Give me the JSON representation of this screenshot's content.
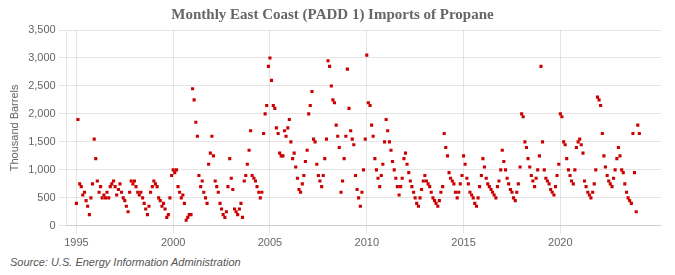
{
  "chart_data": {
    "type": "scatter",
    "title": "Monthly East Coast (PADD 1) Imports of Propane",
    "ylabel": "Thousand Barrels",
    "annotation": "Source: U.S. Energy Information Administration",
    "color": "#cc0000",
    "marker": "square",
    "grid": true,
    "xlim": [
      1994.5,
      2025.2
    ],
    "ylim": [
      0,
      3500
    ],
    "xticks": [
      1995,
      2000,
      2005,
      2010,
      2015,
      2020
    ],
    "yticks": [
      0,
      500,
      {
        "value": 1000,
        "label": "1,000"
      },
      {
        "value": 1500,
        "label": "1,500"
      },
      {
        "value": 2000,
        "label": "2,000"
      },
      {
        "value": 2500,
        "label": "2,500"
      },
      {
        "value": 3000,
        "label": "3,000"
      },
      {
        "value": 3500,
        "label": "3,500"
      }
    ],
    "x": [
      1995.0,
      1995.08,
      1995.17,
      1995.25,
      1995.33,
      1995.42,
      1995.5,
      1995.58,
      1995.67,
      1995.75,
      1995.83,
      1995.92,
      1996.0,
      1996.08,
      1996.17,
      1996.25,
      1996.33,
      1996.42,
      1996.5,
      1996.58,
      1996.67,
      1996.75,
      1996.83,
      1996.92,
      1997.0,
      1997.08,
      1997.17,
      1997.25,
      1997.33,
      1997.42,
      1997.5,
      1997.58,
      1997.67,
      1997.75,
      1997.83,
      1997.92,
      1998.0,
      1998.08,
      1998.17,
      1998.25,
      1998.33,
      1998.42,
      1998.5,
      1998.58,
      1998.67,
      1998.75,
      1998.83,
      1998.92,
      1999.0,
      1999.08,
      1999.17,
      1999.25,
      1999.33,
      1999.42,
      1999.5,
      1999.58,
      1999.67,
      1999.75,
      1999.83,
      1999.92,
      2000.0,
      2000.08,
      2000.17,
      2000.25,
      2000.33,
      2000.42,
      2000.5,
      2000.58,
      2000.67,
      2000.75,
      2000.83,
      2000.92,
      2001.0,
      2001.08,
      2001.17,
      2001.25,
      2001.33,
      2001.42,
      2001.5,
      2001.58,
      2001.67,
      2001.75,
      2001.83,
      2001.92,
      2002.0,
      2002.08,
      2002.17,
      2002.25,
      2002.33,
      2002.42,
      2002.5,
      2002.58,
      2002.67,
      2002.75,
      2002.83,
      2002.92,
      2003.0,
      2003.08,
      2003.17,
      2003.25,
      2003.33,
      2003.42,
      2003.5,
      2003.58,
      2003.67,
      2003.75,
      2003.83,
      2003.92,
      2004.0,
      2004.08,
      2004.17,
      2004.25,
      2004.33,
      2004.42,
      2004.5,
      2004.58,
      2004.67,
      2004.75,
      2004.83,
      2004.92,
      2005.0,
      2005.08,
      2005.17,
      2005.25,
      2005.33,
      2005.42,
      2005.5,
      2005.58,
      2005.67,
      2005.75,
      2005.83,
      2005.92,
      2006.0,
      2006.08,
      2006.17,
      2006.25,
      2006.33,
      2006.42,
      2006.5,
      2006.58,
      2006.67,
      2006.75,
      2006.83,
      2006.92,
      2007.0,
      2007.08,
      2007.17,
      2007.25,
      2007.33,
      2007.42,
      2007.5,
      2007.58,
      2007.67,
      2007.75,
      2007.83,
      2007.92,
      2008.0,
      2008.08,
      2008.17,
      2008.25,
      2008.33,
      2008.42,
      2008.5,
      2008.58,
      2008.67,
      2008.75,
      2008.83,
      2008.92,
      2009.0,
      2009.08,
      2009.17,
      2009.25,
      2009.33,
      2009.42,
      2009.5,
      2009.58,
      2009.67,
      2009.75,
      2009.83,
      2009.92,
      2010.0,
      2010.08,
      2010.17,
      2010.25,
      2010.33,
      2010.42,
      2010.5,
      2010.58,
      2010.67,
      2010.75,
      2010.83,
      2010.92,
      2011.0,
      2011.08,
      2011.17,
      2011.25,
      2011.33,
      2011.42,
      2011.5,
      2011.58,
      2011.67,
      2011.75,
      2011.83,
      2011.92,
      2012.0,
      2012.08,
      2012.17,
      2012.25,
      2012.33,
      2012.42,
      2012.5,
      2012.58,
      2012.67,
      2012.75,
      2012.83,
      2012.92,
      2013.0,
      2013.08,
      2013.17,
      2013.25,
      2013.33,
      2013.42,
      2013.5,
      2013.58,
      2013.67,
      2013.75,
      2013.83,
      2013.92,
      2014.0,
      2014.08,
      2014.17,
      2014.25,
      2014.33,
      2014.42,
      2014.5,
      2014.58,
      2014.67,
      2014.75,
      2014.83,
      2014.92,
      2015.0,
      2015.08,
      2015.17,
      2015.25,
      2015.33,
      2015.42,
      2015.5,
      2015.58,
      2015.67,
      2015.75,
      2015.83,
      2015.92,
      2016.0,
      2016.08,
      2016.17,
      2016.25,
      2016.33,
      2016.42,
      2016.5,
      2016.58,
      2016.67,
      2016.75,
      2016.83,
      2016.92,
      2017.0,
      2017.08,
      2017.17,
      2017.25,
      2017.33,
      2017.42,
      2017.5,
      2017.58,
      2017.67,
      2017.75,
      2017.83,
      2017.92,
      2018.0,
      2018.08,
      2018.17,
      2018.25,
      2018.33,
      2018.42,
      2018.5,
      2018.58,
      2018.67,
      2018.75,
      2018.83,
      2018.92,
      2019.0,
      2019.08,
      2019.17,
      2019.25,
      2019.33,
      2019.42,
      2019.5,
      2019.58,
      2019.67,
      2019.75,
      2019.83,
      2019.92,
      2020.0,
      2020.08,
      2020.17,
      2020.25,
      2020.33,
      2020.42,
      2020.5,
      2020.58,
      2020.67,
      2020.75,
      2020.83,
      2020.92,
      2021.0,
      2021.08,
      2021.17,
      2021.25,
      2021.33,
      2021.42,
      2021.5,
      2021.58,
      2021.67,
      2021.75,
      2021.83,
      2021.92,
      2022.0,
      2022.08,
      2022.17,
      2022.25,
      2022.33,
      2022.42,
      2022.5,
      2022.58,
      2022.67,
      2022.75,
      2022.83,
      2022.92,
      2023.0,
      2023.08,
      2023.17,
      2023.25,
      2023.33,
      2023.42,
      2023.5,
      2023.58,
      2023.67,
      2023.75,
      2023.83,
      2023.92,
      2024.0,
      2024.08
    ],
    "values": [
      400,
      1900,
      750,
      700,
      550,
      600,
      450,
      350,
      200,
      500,
      750,
      1550,
      1200,
      800,
      600,
      700,
      500,
      550,
      500,
      600,
      500,
      700,
      750,
      800,
      700,
      550,
      650,
      750,
      600,
      500,
      450,
      350,
      250,
      600,
      800,
      750,
      800,
      700,
      600,
      550,
      600,
      500,
      400,
      300,
      200,
      350,
      600,
      700,
      800,
      750,
      700,
      500,
      450,
      350,
      400,
      300,
      150,
      200,
      500,
      900,
      1000,
      950,
      1000,
      700,
      600,
      500,
      550,
      400,
      100,
      150,
      200,
      200,
      2450,
      2250,
      1850,
      1600,
      900,
      700,
      800,
      600,
      500,
      400,
      1100,
      1300,
      1600,
      1250,
      800,
      700,
      600,
      400,
      300,
      200,
      150,
      250,
      700,
      1200,
      850,
      650,
      300,
      250,
      200,
      300,
      400,
      150,
      800,
      900,
      1100,
      1350,
      1700,
      900,
      850,
      800,
      700,
      600,
      500,
      600,
      1650,
      2000,
      2150,
      2850,
      3000,
      2600,
      2150,
      2100,
      1750,
      1650,
      1300,
      1250,
      1250,
      1700,
      1600,
      1750,
      1900,
      1500,
      1200,
      1300,
      1050,
      850,
      650,
      600,
      750,
      900,
      1150,
      1350,
      2000,
      2150,
      2400,
      1550,
      1500,
      1100,
      900,
      800,
      700,
      900,
      1200,
      1550,
      2950,
      2850,
      2500,
      2250,
      2200,
      1800,
      1600,
      1400,
      600,
      800,
      1200,
      1600,
      2800,
      2100,
      1700,
      1550,
      1450,
      900,
      650,
      500,
      350,
      600,
      1000,
      1550,
      3050,
      2200,
      2150,
      1800,
      1600,
      1200,
      1000,
      850,
      700,
      900,
      1100,
      1500,
      1900,
      1700,
      1500,
      1350,
      1150,
      1000,
      850,
      700,
      550,
      700,
      850,
      1200,
      1300,
      1100,
      950,
      800,
      700,
      600,
      500,
      400,
      350,
      500,
      650,
      800,
      900,
      800,
      750,
      700,
      600,
      500,
      450,
      400,
      350,
      450,
      600,
      700,
      1650,
      1400,
      1250,
      950,
      850,
      800,
      750,
      600,
      500,
      600,
      750,
      900,
      1250,
      1100,
      850,
      750,
      600,
      550,
      500,
      400,
      350,
      500,
      700,
      900,
      1200,
      1050,
      850,
      750,
      700,
      650,
      600,
      550,
      500,
      700,
      800,
      1000,
      1350,
      1150,
      1000,
      850,
      750,
      650,
      600,
      500,
      450,
      600,
      750,
      1050,
      2000,
      1950,
      1500,
      1400,
      1200,
      1050,
      900,
      800,
      700,
      850,
      1000,
      1250,
      2850,
      1500,
      1000,
      850,
      800,
      750,
      650,
      600,
      550,
      700,
      900,
      1100,
      2000,
      1950,
      1500,
      1450,
      1200,
      1000,
      900,
      800,
      750,
      1000,
      1400,
      1500,
      1550,
      1450,
      1300,
      800,
      700,
      600,
      550,
      500,
      600,
      750,
      1000,
      2300,
      2250,
      2150,
      1650,
      1250,
      1050,
      900,
      800,
      750,
      700,
      850,
      1000,
      1200,
      1400,
      1250,
      1000,
      950,
      750,
      600,
      500,
      450,
      400,
      1650,
      950,
      250,
      1800,
      1650
    ]
  }
}
